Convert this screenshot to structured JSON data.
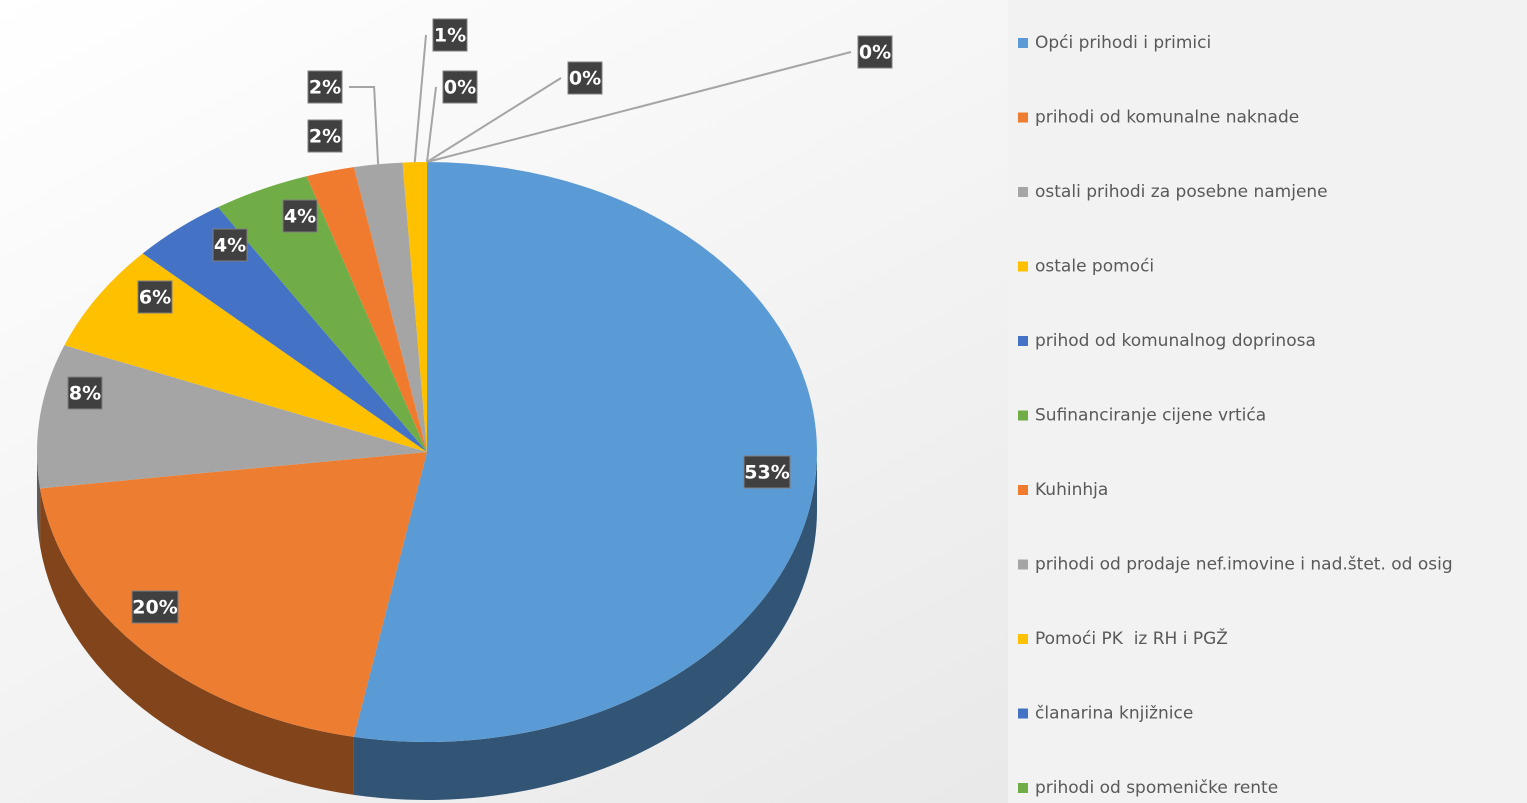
{
  "chart_data": {
    "type": "pie",
    "categories": [
      "Opći prihodi i primici",
      "prihodi od komunalne naknade",
      "ostali prihodi za posebne namjene",
      "ostale pomoći",
      "prihod od komunalnog doprinosa",
      "Sufinanciranje cijene vrtića",
      "Kuhinhja",
      "prihodi od prodaje nef.imovine i nad.štet. od osig",
      "Pomoći PK  iz RH i PGŽ",
      "članarina knjižnice",
      "prihodi od spomeničke rente",
      null
    ],
    "values": [
      53,
      20,
      8,
      6,
      4,
      4,
      2,
      2,
      1,
      0,
      0,
      0
    ],
    "value_labels": [
      "53%",
      "20%",
      "8%",
      "6%",
      "4%",
      "4%",
      "2%",
      "2%",
      "1%",
      "0%",
      "0%",
      "0%"
    ],
    "colors": [
      "#5b9bd5",
      "#ed7d31",
      "#a5a5a5",
      "#ffc000",
      "#4472c4",
      "#70ad47",
      "#f07b2f",
      "#a5a5a5",
      "#ffc000",
      "#4472c4",
      "#70ad47",
      "#264478"
    ],
    "legend": "right"
  }
}
